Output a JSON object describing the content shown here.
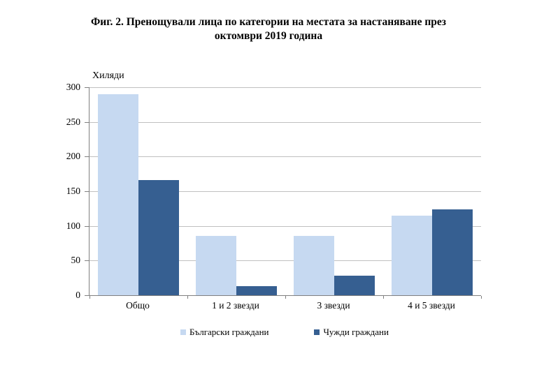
{
  "title": {
    "line1": "Фиг. 2. Пренощували лица по категории на местата за настаняване през",
    "line2": "октомври 2019 година"
  },
  "chart_data": {
    "type": "bar",
    "title": "Фиг. 2. Пренощували лица по категории на местата за настаняване през октомври 2019 година",
    "unit_label": "Хиляди",
    "categories": [
      "Общо",
      "1 и 2 звезди",
      "3 звезди",
      "4 и 5 звезди"
    ],
    "series": [
      {
        "name": "Български граждани",
        "color": "#C6D9F1",
        "values": [
          290,
          86,
          86,
          115
        ]
      },
      {
        "name": "Чужди граждани",
        "color": "#365F91",
        "values": [
          166,
          13,
          28,
          124
        ]
      }
    ],
    "ylim": [
      0,
      300
    ],
    "yticks": [
      0,
      50,
      100,
      150,
      200,
      250,
      300
    ],
    "grid": true,
    "legend_position": "bottom"
  },
  "colors": {
    "background": "#FFFFFF",
    "gridline": "#C0C0C0",
    "axis": "#808080",
    "text": "#000000",
    "series_bulgarian": "#C6D9F1",
    "series_foreign": "#365F91"
  }
}
